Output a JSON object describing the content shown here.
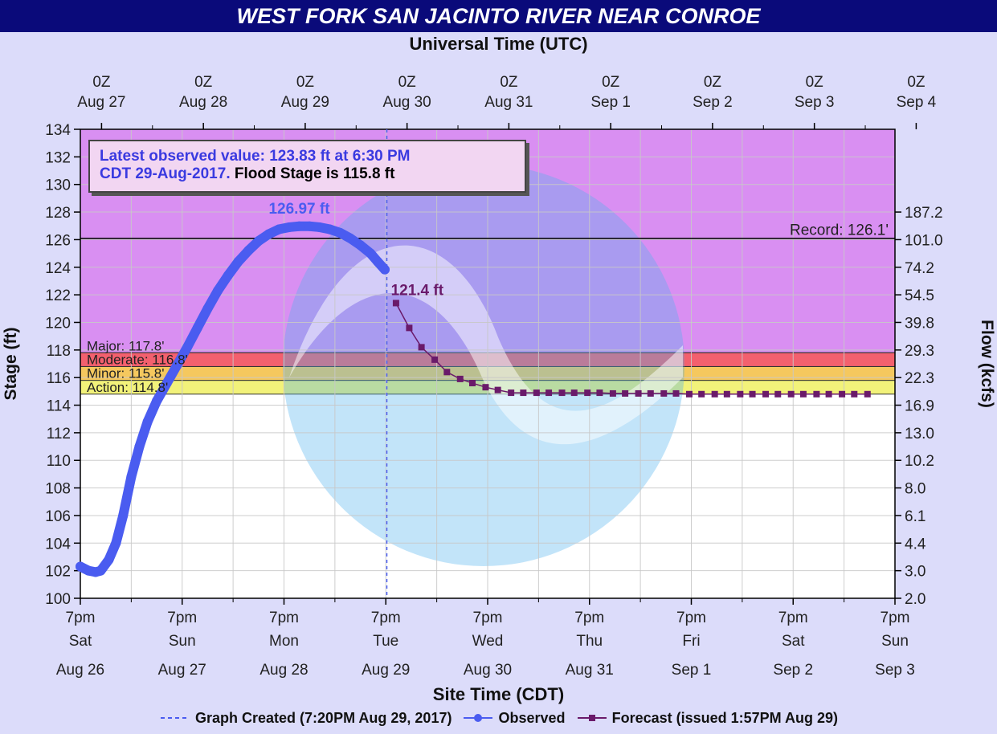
{
  "title": "WEST FORK SAN JACINTO RIVER NEAR CONROE",
  "top_axis_title": "Universal Time (UTC)",
  "bottom_axis_title": "Site Time (CDT)",
  "info_box": {
    "line1": "Latest observed value: 123.83  ft at 6:30 PM",
    "line2_blue": "CDT 29-Aug-2017.",
    "line2_black": " Flood Stage is 115.8 ft"
  },
  "legend": {
    "created": "Graph Created (7:20PM Aug 29, 2017)",
    "observed": "Observed",
    "forecast": "Forecast (issued 1:57PM Aug 29)"
  },
  "colors": {
    "title_bg": "#0a0a7a",
    "page_bg": "#dcdcfa",
    "record_zone": "#d98ff2",
    "major": "#f3606e",
    "moderate": "#f78b62",
    "minor": "#f5c85e",
    "action": "#f2f27a",
    "observed": "#4a5cf0",
    "forecast": "#6a1a6a"
  },
  "chart_data": {
    "type": "line",
    "ylabel": "Stage (ft)",
    "y2label": "Flow (kcfs)",
    "ylim": [
      100,
      134
    ],
    "yticks": [
      100,
      102,
      104,
      106,
      108,
      110,
      112,
      114,
      116,
      118,
      120,
      122,
      124,
      126,
      128,
      130,
      132,
      134
    ],
    "flow_ticks": [
      {
        "stage": 100,
        "label": "2.0"
      },
      {
        "stage": 102,
        "label": "3.0"
      },
      {
        "stage": 104,
        "label": "4.4"
      },
      {
        "stage": 106,
        "label": "6.1"
      },
      {
        "stage": 108,
        "label": "8.0"
      },
      {
        "stage": 110,
        "label": "10.2"
      },
      {
        "stage": 112,
        "label": "13.0"
      },
      {
        "stage": 114,
        "label": "16.9"
      },
      {
        "stage": 116,
        "label": "22.3"
      },
      {
        "stage": 118,
        "label": "29.3"
      },
      {
        "stage": 120,
        "label": "39.8"
      },
      {
        "stage": 122,
        "label": "54.5"
      },
      {
        "stage": 124,
        "label": "74.2"
      },
      {
        "stage": 126,
        "label": "101.0"
      },
      {
        "stage": 128,
        "label": "187.2"
      }
    ],
    "top_ticks": [
      {
        "line1": "0Z",
        "line2": "Aug 27"
      },
      {
        "line1": "0Z",
        "line2": "Aug 28"
      },
      {
        "line1": "0Z",
        "line2": "Aug 29"
      },
      {
        "line1": "0Z",
        "line2": "Aug 30"
      },
      {
        "line1": "0Z",
        "line2": "Aug 31"
      },
      {
        "line1": "0Z",
        "line2": "Sep  1"
      },
      {
        "line1": "0Z",
        "line2": "Sep  2"
      },
      {
        "line1": "0Z",
        "line2": "Sep  3"
      },
      {
        "line1": "0Z",
        "line2": "Sep  4"
      }
    ],
    "bottom_ticks": [
      {
        "time": "7pm",
        "day": "Sat",
        "date": "Aug 26"
      },
      {
        "time": "7pm",
        "day": "Sun",
        "date": "Aug 27"
      },
      {
        "time": "7pm",
        "day": "Mon",
        "date": "Aug 28"
      },
      {
        "time": "7pm",
        "day": "Tue",
        "date": "Aug 29"
      },
      {
        "time": "7pm",
        "day": "Wed",
        "date": "Aug 30"
      },
      {
        "time": "7pm",
        "day": "Thu",
        "date": "Aug 31"
      },
      {
        "time": "7pm",
        "day": "Fri",
        "date": "Sep 1"
      },
      {
        "time": "7pm",
        "day": "Sat",
        "date": "Sep 2"
      },
      {
        "time": "7pm",
        "day": "Sun",
        "date": "Sep 3"
      }
    ],
    "flood_categories": [
      {
        "name": "Major",
        "label": "Major: 117.8'",
        "from": 117.8,
        "to": 134
      },
      {
        "name": "Moderate",
        "label": "Moderate: 116.8'",
        "from": 116.8,
        "to": 117.8
      },
      {
        "name": "Minor",
        "label": "Minor: 115.8'",
        "from": 115.8,
        "to": 116.8
      },
      {
        "name": "Action",
        "label": "Action: 114.8'",
        "from": 114.8,
        "to": 115.8
      }
    ],
    "record": {
      "value": 126.1,
      "label": "Record: 126.1'"
    },
    "created_day": 3.01,
    "observed": {
      "name": "Observed",
      "peak_label": "126.97 ft",
      "points": [
        [
          0.0,
          102.3
        ],
        [
          0.08,
          102.0
        ],
        [
          0.15,
          101.9
        ],
        [
          0.2,
          102.0
        ],
        [
          0.28,
          102.8
        ],
        [
          0.35,
          104.0
        ],
        [
          0.42,
          106.0
        ],
        [
          0.5,
          108.8
        ],
        [
          0.58,
          111.0
        ],
        [
          0.66,
          112.8
        ],
        [
          0.75,
          114.3
        ],
        [
          0.85,
          115.6
        ],
        [
          0.95,
          116.9
        ],
        [
          1.05,
          118.2
        ],
        [
          1.15,
          119.6
        ],
        [
          1.25,
          121.0
        ],
        [
          1.35,
          122.3
        ],
        [
          1.45,
          123.4
        ],
        [
          1.55,
          124.4
        ],
        [
          1.65,
          125.2
        ],
        [
          1.75,
          125.9
        ],
        [
          1.85,
          126.4
        ],
        [
          1.95,
          126.75
        ],
        [
          2.05,
          126.9
        ],
        [
          2.15,
          126.97
        ],
        [
          2.25,
          126.97
        ],
        [
          2.35,
          126.9
        ],
        [
          2.45,
          126.75
        ],
        [
          2.55,
          126.5
        ],
        [
          2.65,
          126.1
        ],
        [
          2.75,
          125.6
        ],
        [
          2.85,
          125.0
        ],
        [
          2.92,
          124.4
        ],
        [
          2.99,
          123.83
        ]
      ]
    },
    "forecast": {
      "name": "Forecast",
      "peak_label": "121.4 ft",
      "points": [
        [
          3.1,
          121.4
        ],
        [
          3.23,
          119.6
        ],
        [
          3.35,
          118.2
        ],
        [
          3.48,
          117.3
        ],
        [
          3.6,
          116.4
        ],
        [
          3.73,
          115.9
        ],
        [
          3.85,
          115.6
        ],
        [
          3.98,
          115.3
        ],
        [
          4.1,
          115.1
        ],
        [
          4.23,
          114.9
        ],
        [
          4.35,
          114.9
        ],
        [
          4.48,
          114.9
        ],
        [
          4.6,
          114.9
        ],
        [
          4.73,
          114.9
        ],
        [
          4.85,
          114.9
        ],
        [
          4.98,
          114.9
        ],
        [
          5.1,
          114.9
        ],
        [
          5.23,
          114.85
        ],
        [
          5.35,
          114.85
        ],
        [
          5.48,
          114.85
        ],
        [
          5.6,
          114.85
        ],
        [
          5.73,
          114.85
        ],
        [
          5.85,
          114.85
        ],
        [
          5.98,
          114.8
        ],
        [
          6.1,
          114.8
        ],
        [
          6.23,
          114.8
        ],
        [
          6.35,
          114.8
        ],
        [
          6.48,
          114.8
        ],
        [
          6.6,
          114.8
        ],
        [
          6.73,
          114.8
        ],
        [
          6.85,
          114.8
        ],
        [
          6.98,
          114.8
        ],
        [
          7.1,
          114.8
        ],
        [
          7.23,
          114.8
        ],
        [
          7.35,
          114.8
        ],
        [
          7.48,
          114.8
        ],
        [
          7.6,
          114.8
        ],
        [
          7.73,
          114.8
        ]
      ]
    },
    "grid": true
  }
}
